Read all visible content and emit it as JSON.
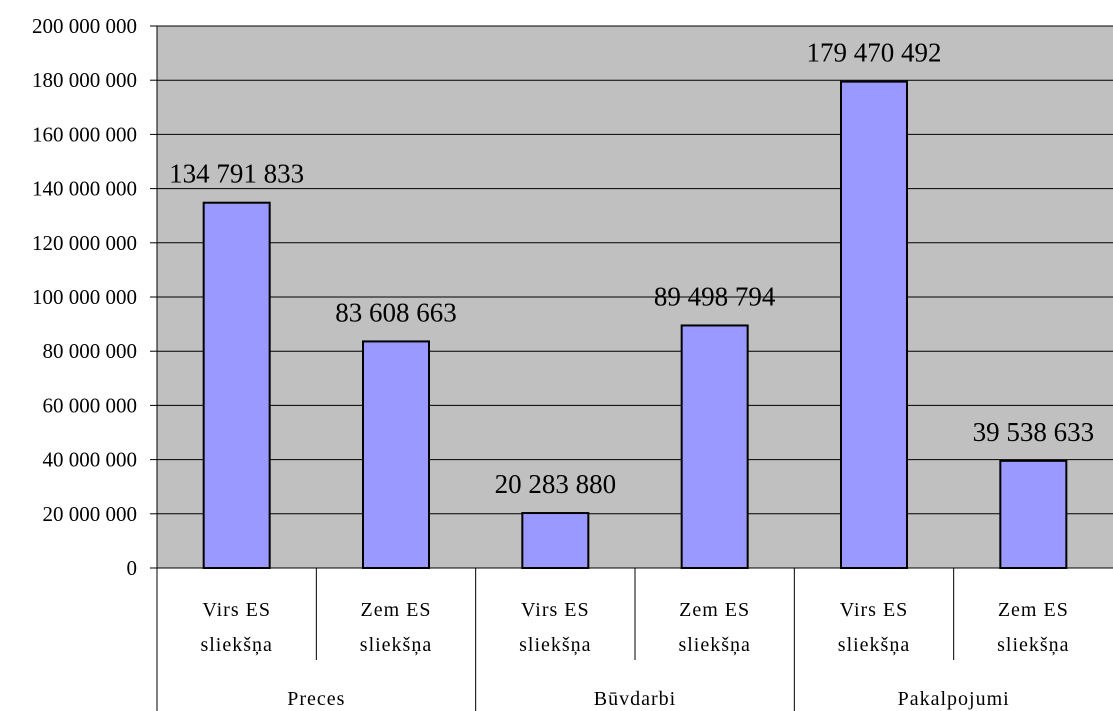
{
  "chart_data": {
    "type": "bar",
    "title": "",
    "xlabel": "",
    "ylabel": "",
    "ylim": [
      0,
      200000000
    ],
    "y_ticks": [
      0,
      20000000,
      40000000,
      60000000,
      80000000,
      100000000,
      120000000,
      140000000,
      160000000,
      180000000,
      200000000
    ],
    "y_tick_labels": [
      "0",
      "20 000 000",
      "40 000 000",
      "60 000 000",
      "80 000 000",
      "100 000 000",
      "120 000 000",
      "140 000 000",
      "160 000 000",
      "180 000 000",
      "200 000 000"
    ],
    "grid": true,
    "legend": "none",
    "colors": {
      "plot_background": "#c0c0c0",
      "bar_fill": "#9999ff",
      "bar_stroke": "#000000",
      "gridline": "#000000"
    },
    "groups": [
      "Preces",
      "Būvdarbi",
      "Pakalpojumi"
    ],
    "categories": [
      {
        "label": [
          "Virs ES",
          "sliekšņa"
        ],
        "group": "Preces"
      },
      {
        "label": [
          "Zem ES",
          "sliekšņa"
        ],
        "group": "Preces"
      },
      {
        "label": [
          "Virs ES",
          "sliekšņa"
        ],
        "group": "Būvdarbi"
      },
      {
        "label": [
          "Zem ES",
          "sliekšņa"
        ],
        "group": "Būvdarbi"
      },
      {
        "label": [
          "Virs ES",
          "sliekšņa"
        ],
        "group": "Pakalpojumi"
      },
      {
        "label": [
          "Zem ES",
          "sliekšņa"
        ],
        "group": "Pakalpojumi"
      }
    ],
    "values": [
      134791833,
      83608663,
      20283880,
      89498794,
      179470492,
      39538633
    ],
    "data_labels": [
      "134 791 833",
      "83 608 663",
      "20 283 880",
      "89 498 794",
      "179 470 492",
      "39 538 633"
    ]
  }
}
